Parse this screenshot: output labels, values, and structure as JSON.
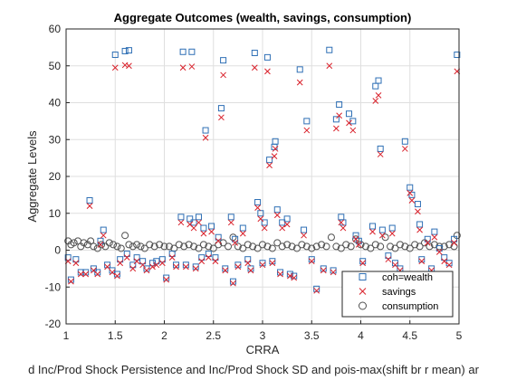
{
  "chart_data": {
    "type": "scatter",
    "title": "Aggregate Outcomes (wealth, savings, consumption)",
    "xlabel": "CRRA",
    "xlabel_line2": "d Inc/Prod Shock Persistence and Inc/Prod Shock SD and pois-max(shift br r mean) ar",
    "ylabel": "Aggregate Levels",
    "xlim": [
      1,
      5
    ],
    "ylim": [
      -20,
      60
    ],
    "xticks": [
      "1",
      "1.5",
      "2",
      "2.5",
      "3",
      "3.5",
      "4",
      "4.5",
      "5"
    ],
    "yticks": [
      "-20",
      "-10",
      "0",
      "10",
      "20",
      "30",
      "40",
      "50",
      "60"
    ],
    "grid": true,
    "legend_position": "bottom-right",
    "colors": {
      "wealth": "#2e6fb5",
      "savings": "#d9212b",
      "consumption": "#505050"
    },
    "series": [
      {
        "name": "coh=wealth",
        "marker": "square",
        "points": [
          [
            1.02,
            -2
          ],
          [
            1.05,
            -8
          ],
          [
            1.1,
            -2.5
          ],
          [
            1.15,
            -6
          ],
          [
            1.2,
            -6
          ],
          [
            1.24,
            13.5
          ],
          [
            1.28,
            -5
          ],
          [
            1.32,
            -6
          ],
          [
            1.35,
            2.5
          ],
          [
            1.38,
            5.5
          ],
          [
            1.42,
            -4
          ],
          [
            1.47,
            -5.5
          ],
          [
            1.5,
            53
          ],
          [
            1.52,
            -6.5
          ],
          [
            1.55,
            -2.5
          ],
          [
            1.6,
            54
          ],
          [
            1.62,
            -1
          ],
          [
            1.64,
            54.2
          ],
          [
            1.68,
            -4
          ],
          [
            1.72,
            -2
          ],
          [
            1.78,
            -3
          ],
          [
            1.82,
            -5
          ],
          [
            1.88,
            -3.5
          ],
          [
            1.92,
            -3
          ],
          [
            1.98,
            -2.5
          ],
          [
            2.02,
            -7.5
          ],
          [
            2.08,
            -1
          ],
          [
            2.12,
            -4
          ],
          [
            2.17,
            9
          ],
          [
            2.19,
            53.8
          ],
          [
            2.22,
            -4
          ],
          [
            2.26,
            8.5
          ],
          [
            2.28,
            53.8
          ],
          [
            2.3,
            7.5
          ],
          [
            2.32,
            -4.5
          ],
          [
            2.35,
            9
          ],
          [
            2.38,
            -2
          ],
          [
            2.4,
            6
          ],
          [
            2.42,
            32.5
          ],
          [
            2.45,
            -1
          ],
          [
            2.48,
            6.5
          ],
          [
            2.52,
            -2
          ],
          [
            2.55,
            3.5
          ],
          [
            2.58,
            38.5
          ],
          [
            2.6,
            51.5
          ],
          [
            2.62,
            -5
          ],
          [
            2.68,
            9
          ],
          [
            2.7,
            -8.5
          ],
          [
            2.72,
            3
          ],
          [
            2.75,
            -4
          ],
          [
            2.8,
            6
          ],
          [
            2.85,
            -2.5
          ],
          [
            2.88,
            -5
          ],
          [
            2.92,
            53.5
          ],
          [
            2.95,
            13
          ],
          [
            2.98,
            10
          ],
          [
            3.0,
            -3.5
          ],
          [
            3.02,
            7.5
          ],
          [
            3.05,
            52.3
          ],
          [
            3.07,
            24.5
          ],
          [
            3.1,
            -3
          ],
          [
            3.12,
            28
          ],
          [
            3.13,
            29.5
          ],
          [
            3.15,
            11
          ],
          [
            3.18,
            -6
          ],
          [
            3.2,
            7.5
          ],
          [
            3.25,
            8.5
          ],
          [
            3.28,
            -6.5
          ],
          [
            3.32,
            -7
          ],
          [
            3.38,
            49
          ],
          [
            3.42,
            5.5
          ],
          [
            3.45,
            35
          ],
          [
            3.5,
            -2.5
          ],
          [
            3.55,
            -10.5
          ],
          [
            3.62,
            -5
          ],
          [
            3.68,
            54.3
          ],
          [
            3.72,
            -5.5
          ],
          [
            3.75,
            35.5
          ],
          [
            3.78,
            39.5
          ],
          [
            3.8,
            9
          ],
          [
            3.82,
            7.5
          ],
          [
            3.88,
            37
          ],
          [
            3.92,
            35
          ],
          [
            3.95,
            4
          ],
          [
            3.98,
            2.5
          ],
          [
            4.02,
            -3
          ],
          [
            4.08,
            -8.5
          ],
          [
            4.12,
            6.5
          ],
          [
            4.15,
            44.5
          ],
          [
            4.18,
            46
          ],
          [
            4.2,
            27.5
          ],
          [
            4.22,
            5.5
          ],
          [
            4.28,
            -1.5
          ],
          [
            4.32,
            6
          ],
          [
            4.35,
            -3.5
          ],
          [
            4.4,
            -5
          ],
          [
            4.45,
            29.5
          ],
          [
            4.5,
            17
          ],
          [
            4.52,
            15
          ],
          [
            4.58,
            12.5
          ],
          [
            4.6,
            7
          ],
          [
            4.62,
            -2.5
          ],
          [
            4.68,
            3
          ],
          [
            4.72,
            -5
          ],
          [
            4.75,
            5
          ],
          [
            4.8,
            0.5
          ],
          [
            4.85,
            -2
          ],
          [
            4.9,
            -3.5
          ],
          [
            4.95,
            3
          ],
          [
            4.98,
            53
          ]
        ]
      },
      {
        "name": "savings",
        "marker": "x",
        "points": [
          [
            1.02,
            -3
          ],
          [
            1.05,
            -8.5
          ],
          [
            1.1,
            -3.5
          ],
          [
            1.15,
            -6.5
          ],
          [
            1.2,
            -6.5
          ],
          [
            1.24,
            12
          ],
          [
            1.28,
            -5.5
          ],
          [
            1.32,
            -6.5
          ],
          [
            1.35,
            1.5
          ],
          [
            1.38,
            4
          ],
          [
            1.42,
            -4.5
          ],
          [
            1.47,
            -6
          ],
          [
            1.5,
            49.5
          ],
          [
            1.52,
            -7
          ],
          [
            1.55,
            -3.5
          ],
          [
            1.6,
            50.2
          ],
          [
            1.62,
            -2
          ],
          [
            1.64,
            50
          ],
          [
            1.68,
            -5
          ],
          [
            1.72,
            -3
          ],
          [
            1.78,
            -4
          ],
          [
            1.82,
            -5.5
          ],
          [
            1.88,
            -4.5
          ],
          [
            1.92,
            -4
          ],
          [
            1.98,
            -3.5
          ],
          [
            2.02,
            -8
          ],
          [
            2.08,
            -2
          ],
          [
            2.12,
            -4.5
          ],
          [
            2.17,
            7.5
          ],
          [
            2.19,
            49.5
          ],
          [
            2.22,
            -4.5
          ],
          [
            2.26,
            7
          ],
          [
            2.28,
            49.8
          ],
          [
            2.3,
            6
          ],
          [
            2.32,
            -5
          ],
          [
            2.35,
            7.5
          ],
          [
            2.38,
            -3
          ],
          [
            2.4,
            4.5
          ],
          [
            2.42,
            30.5
          ],
          [
            2.45,
            -2
          ],
          [
            2.48,
            5
          ],
          [
            2.52,
            -3
          ],
          [
            2.55,
            2.5
          ],
          [
            2.58,
            36
          ],
          [
            2.6,
            47.5
          ],
          [
            2.62,
            -5.5
          ],
          [
            2.68,
            7.5
          ],
          [
            2.7,
            -9
          ],
          [
            2.72,
            2
          ],
          [
            2.75,
            -4.5
          ],
          [
            2.8,
            4.5
          ],
          [
            2.85,
            -3.5
          ],
          [
            2.88,
            -5.5
          ],
          [
            2.92,
            49.5
          ],
          [
            2.95,
            11.5
          ],
          [
            2.98,
            8.5
          ],
          [
            3.0,
            -4
          ],
          [
            3.02,
            6
          ],
          [
            3.05,
            48.5
          ],
          [
            3.07,
            23
          ],
          [
            3.1,
            -3.5
          ],
          [
            3.12,
            25.5
          ],
          [
            3.13,
            27.5
          ],
          [
            3.15,
            9.5
          ],
          [
            3.18,
            -6.5
          ],
          [
            3.2,
            6
          ],
          [
            3.25,
            7
          ],
          [
            3.28,
            -7
          ],
          [
            3.32,
            -7.5
          ],
          [
            3.38,
            45.5
          ],
          [
            3.42,
            4
          ],
          [
            3.45,
            32.5
          ],
          [
            3.5,
            -3
          ],
          [
            3.55,
            -11
          ],
          [
            3.62,
            -5.5
          ],
          [
            3.68,
            50
          ],
          [
            3.72,
            -6
          ],
          [
            3.75,
            33
          ],
          [
            3.78,
            36.5
          ],
          [
            3.8,
            7.5
          ],
          [
            3.82,
            6
          ],
          [
            3.88,
            34.5
          ],
          [
            3.92,
            32.5
          ],
          [
            3.95,
            3
          ],
          [
            3.98,
            1.5
          ],
          [
            4.02,
            -3.5
          ],
          [
            4.08,
            -9
          ],
          [
            4.12,
            5
          ],
          [
            4.15,
            40.5
          ],
          [
            4.18,
            42
          ],
          [
            4.2,
            26
          ],
          [
            4.22,
            4
          ],
          [
            4.28,
            -2.5
          ],
          [
            4.32,
            4.5
          ],
          [
            4.35,
            -4
          ],
          [
            4.4,
            -5.5
          ],
          [
            4.45,
            27.5
          ],
          [
            4.5,
            15.5
          ],
          [
            4.52,
            13.5
          ],
          [
            4.58,
            10.5
          ],
          [
            4.6,
            5.5
          ],
          [
            4.62,
            -3
          ],
          [
            4.68,
            2
          ],
          [
            4.72,
            -5.5
          ],
          [
            4.75,
            3.5
          ],
          [
            4.8,
            -0.5
          ],
          [
            4.85,
            -3
          ],
          [
            4.9,
            -4
          ],
          [
            4.95,
            2
          ],
          [
            4.98,
            48.5
          ]
        ]
      },
      {
        "name": "consumption",
        "marker": "circle",
        "points": [
          [
            1.02,
            2.5
          ],
          [
            1.05,
            1.5
          ],
          [
            1.08,
            2
          ],
          [
            1.12,
            2.5
          ],
          [
            1.15,
            1
          ],
          [
            1.18,
            2
          ],
          [
            1.22,
            1.5
          ],
          [
            1.25,
            2.5
          ],
          [
            1.28,
            1
          ],
          [
            1.32,
            0.5
          ],
          [
            1.36,
            1.5
          ],
          [
            1.4,
            1
          ],
          [
            1.44,
            2
          ],
          [
            1.48,
            1.5
          ],
          [
            1.52,
            1
          ],
          [
            1.56,
            0.5
          ],
          [
            1.6,
            4
          ],
          [
            1.64,
            1.5
          ],
          [
            1.68,
            1
          ],
          [
            1.72,
            1.5
          ],
          [
            1.76,
            1
          ],
          [
            1.8,
            0.5
          ],
          [
            1.85,
            1.5
          ],
          [
            1.9,
            1
          ],
          [
            1.95,
            1.5
          ],
          [
            2.0,
            1
          ],
          [
            2.05,
            1
          ],
          [
            2.1,
            0.5
          ],
          [
            2.15,
            1.5
          ],
          [
            2.2,
            1
          ],
          [
            2.25,
            1.5
          ],
          [
            2.3,
            1
          ],
          [
            2.35,
            0.5
          ],
          [
            2.4,
            1.5
          ],
          [
            2.45,
            1
          ],
          [
            2.5,
            0.5
          ],
          [
            2.55,
            1.5
          ],
          [
            2.6,
            2
          ],
          [
            2.65,
            1
          ],
          [
            2.7,
            3.5
          ],
          [
            2.75,
            1
          ],
          [
            2.8,
            0.5
          ],
          [
            2.85,
            1.5
          ],
          [
            2.9,
            1
          ],
          [
            2.95,
            0.5
          ],
          [
            3.0,
            1.5
          ],
          [
            3.05,
            1
          ],
          [
            3.1,
            0.5
          ],
          [
            3.15,
            2
          ],
          [
            3.2,
            1
          ],
          [
            3.25,
            1.5
          ],
          [
            3.3,
            1
          ],
          [
            3.35,
            0.5
          ],
          [
            3.4,
            1.5
          ],
          [
            3.45,
            1
          ],
          [
            3.5,
            0.5
          ],
          [
            3.55,
            1
          ],
          [
            3.6,
            1.5
          ],
          [
            3.65,
            1
          ],
          [
            3.7,
            3.5
          ],
          [
            3.75,
            1
          ],
          [
            3.8,
            0.5
          ],
          [
            3.85,
            1.5
          ],
          [
            3.9,
            1
          ],
          [
            3.95,
            3
          ],
          [
            4.0,
            1.5
          ],
          [
            4.05,
            1
          ],
          [
            4.1,
            0.5
          ],
          [
            4.15,
            1.5
          ],
          [
            4.2,
            1
          ],
          [
            4.25,
            3.5
          ],
          [
            4.3,
            1
          ],
          [
            4.35,
            0.5
          ],
          [
            4.4,
            1.5
          ],
          [
            4.45,
            1
          ],
          [
            4.5,
            0.5
          ],
          [
            4.55,
            1.5
          ],
          [
            4.6,
            1
          ],
          [
            4.65,
            2
          ],
          [
            4.7,
            1
          ],
          [
            4.75,
            1.5
          ],
          [
            4.8,
            1
          ],
          [
            4.85,
            1
          ],
          [
            4.9,
            1.5
          ],
          [
            4.95,
            1
          ],
          [
            4.98,
            4
          ]
        ]
      }
    ]
  }
}
